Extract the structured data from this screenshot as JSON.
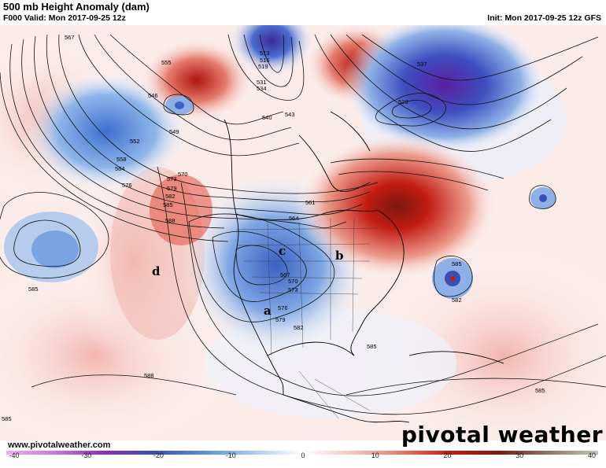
{
  "header": {
    "title": "500 mb Height Anomaly (dam)",
    "valid": "F000 Valid: Mon 2017-09-25 12z",
    "init": "Init: Mon 2017-09-25 12z GFS"
  },
  "footer": {
    "url": "www.pivotalweather.com",
    "brand": "pivotal weather"
  },
  "colorbar": {
    "min": -40,
    "max": 40,
    "tick_labels": [
      "-40",
      "-30",
      "-20",
      "-10",
      "0",
      "10",
      "20",
      "30",
      "40"
    ],
    "stops": [
      "#e7b3ec",
      "#c776dc",
      "#8c2fb3",
      "#3a4fb0",
      "#5b8ed9",
      "#a9c9ee",
      "#ffffff",
      "#f3c7c3",
      "#e57b6c",
      "#c21b12",
      "#7a1a10",
      "#8a7a66",
      "#c8c2b8"
    ]
  },
  "map": {
    "feature_labels": [
      "a",
      "b",
      "c",
      "d"
    ],
    "contour_labels": [
      "567",
      "555",
      "546",
      "549",
      "552",
      "558",
      "564",
      "576",
      "570",
      "573",
      "579",
      "582",
      "585",
      "588",
      "513",
      "516",
      "519",
      "531",
      "534",
      "540",
      "543",
      "537",
      "561",
      "528",
      "585",
      "582",
      "585",
      "588",
      "564",
      "567",
      "570",
      "573",
      "576",
      "579",
      "582",
      "585",
      "585",
      "585"
    ]
  }
}
